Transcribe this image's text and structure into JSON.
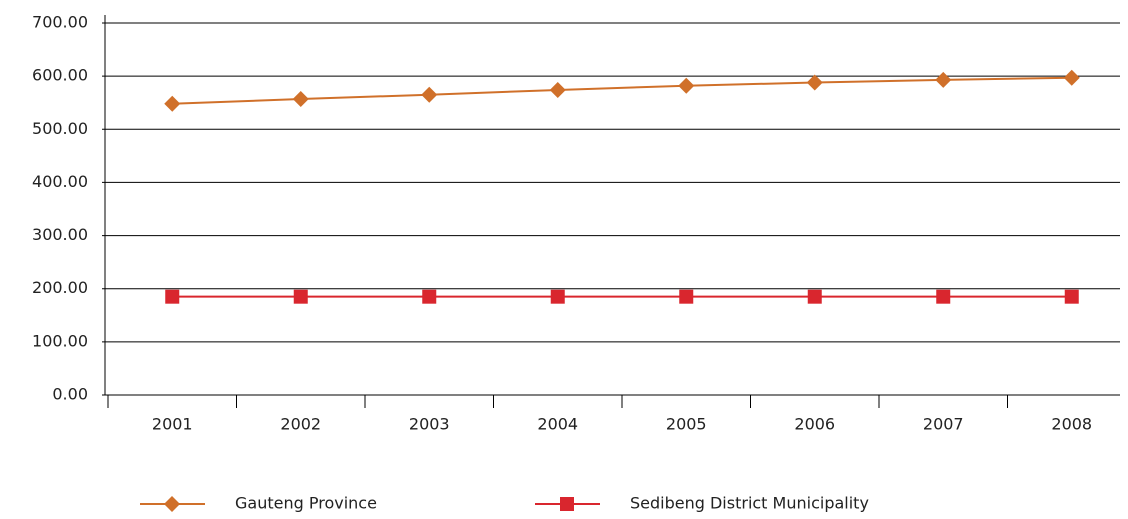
{
  "chart_data": {
    "type": "line",
    "categories": [
      "2001",
      "2002",
      "2003",
      "2004",
      "2005",
      "2006",
      "2007",
      "2008"
    ],
    "series": [
      {
        "name": "Gauteng Province",
        "color": "#d0702a",
        "marker": "diamond",
        "values": [
          548,
          557,
          565,
          574,
          582,
          588,
          593,
          597
        ]
      },
      {
        "name": "Sedibeng District Municipality",
        "color": "#d9262e",
        "marker": "square",
        "values": [
          185,
          185,
          185,
          185,
          185,
          185,
          185,
          185
        ]
      }
    ],
    "ylim": [
      0,
      700
    ],
    "yticks": [
      {
        "value": 0,
        "label": "0.00"
      },
      {
        "value": 100,
        "label": "100.00"
      },
      {
        "value": 200,
        "label": "200.00"
      },
      {
        "value": 300,
        "label": "300.00"
      },
      {
        "value": 400,
        "label": "400.00"
      },
      {
        "value": 500,
        "label": "500.00"
      },
      {
        "value": 600,
        "label": "600.00"
      },
      {
        "value": 700,
        "label": "700.00"
      }
    ],
    "grid": true
  }
}
